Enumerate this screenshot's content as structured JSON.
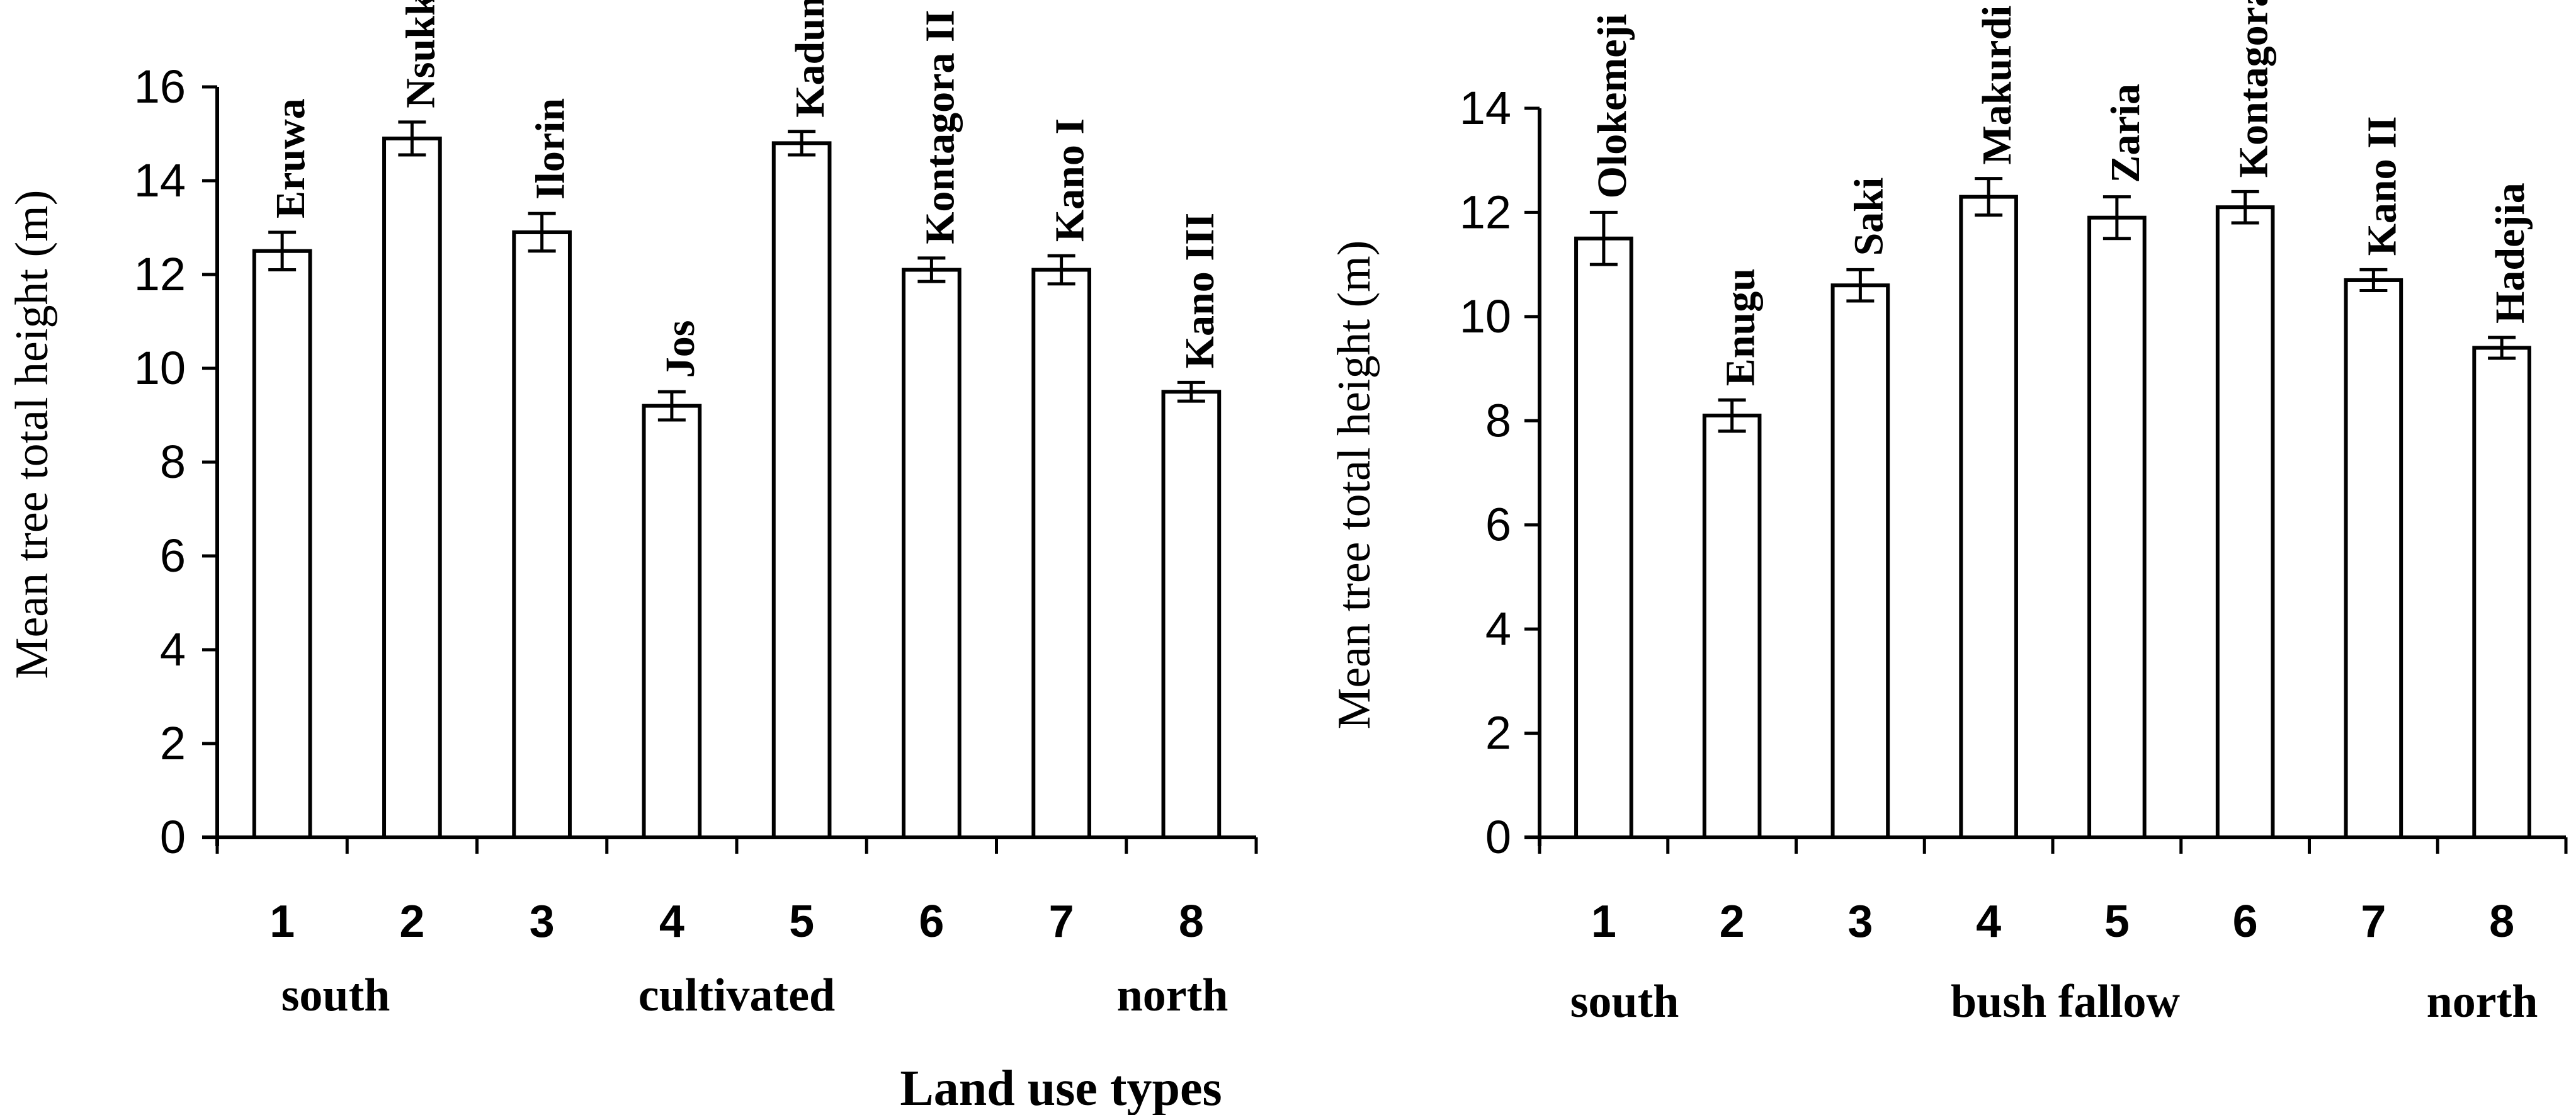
{
  "chart_data": [
    {
      "type": "bar",
      "ylabel": "Mean tree total height (m)",
      "xlabel": "Land use types",
      "ylim": [
        0,
        16
      ],
      "yticks": [
        0,
        2,
        4,
        6,
        8,
        10,
        12,
        14,
        16
      ],
      "categories": [
        "1",
        "2",
        "3",
        "4",
        "5",
        "6",
        "7",
        "8"
      ],
      "values": [
        12.5,
        14.9,
        12.9,
        9.2,
        14.8,
        12.1,
        12.1,
        9.5
      ],
      "errors": [
        0.4,
        0.35,
        0.4,
        0.3,
        0.25,
        0.25,
        0.3,
        0.2
      ],
      "site_labels": [
        "Eruwa",
        "Nsukka",
        "Ilorin",
        "Jos",
        "Kaduna",
        "Kontagora II",
        "Kano I",
        "Kano III"
      ],
      "group_labels": {
        "left": "south",
        "center": "cultivated",
        "right": "north"
      },
      "grid": false
    },
    {
      "type": "bar",
      "ylabel": "Mean tree total height (m)",
      "xlabel": "",
      "ylim": [
        0,
        14
      ],
      "yticks": [
        0,
        2,
        4,
        6,
        8,
        10,
        12,
        14
      ],
      "categories": [
        "1",
        "2",
        "3",
        "4",
        "5",
        "6",
        "7",
        "8"
      ],
      "values": [
        11.5,
        8.1,
        10.6,
        12.3,
        11.9,
        12.1,
        10.7,
        9.4
      ],
      "errors": [
        0.5,
        0.3,
        0.3,
        0.35,
        0.4,
        0.3,
        0.2,
        0.2
      ],
      "site_labels": [
        "Olokemeji",
        "Enugu",
        "Saki",
        "Makurdi",
        "Zaria",
        "Kontagora I",
        "Kano II",
        "Hadejia"
      ],
      "group_labels": {
        "left": "south",
        "center": "bush fallow",
        "right": "north"
      },
      "grid": false
    }
  ]
}
